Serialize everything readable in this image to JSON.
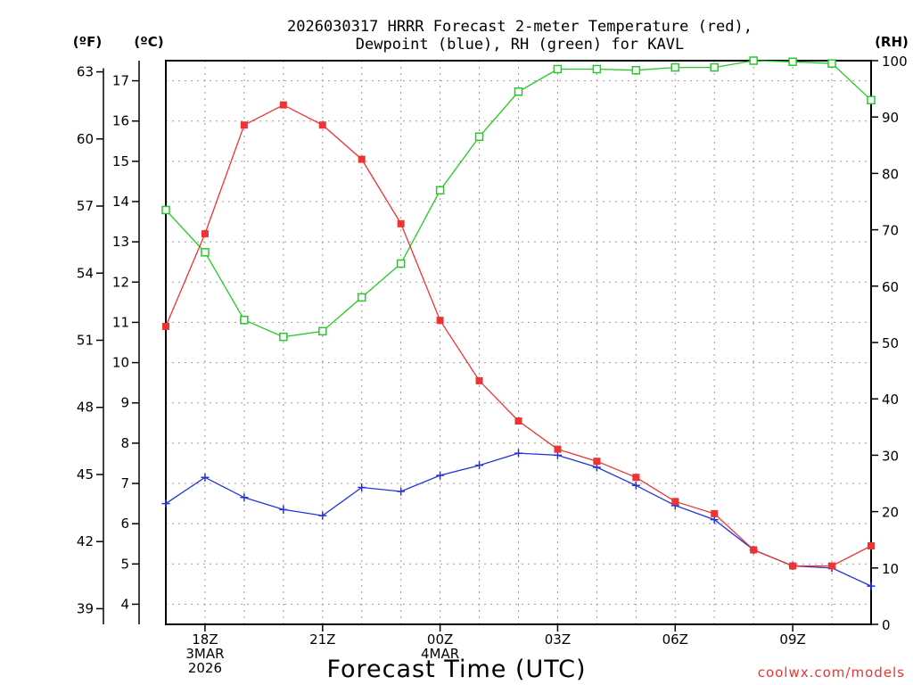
{
  "chart_data": {
    "type": "line",
    "title_line1": "2026030317 HRRR Forecast 2-meter Temperature (red),",
    "title_line2": "Dewpoint (blue), RH (green) for KAVL",
    "xlabel": "Forecast Time (UTC)",
    "credit": "coolwx.com/models",
    "units": {
      "fahrenheit": "(ºF)",
      "celsius": "(ºC)",
      "rh": "(RH)"
    },
    "colors": {
      "temperature": "#ee3333",
      "dewpoint": "#2233dd",
      "rh": "#22cc22",
      "grid": "#999999"
    },
    "hours": [
      0,
      1,
      2,
      3,
      4,
      5,
      6,
      7,
      8,
      9,
      10,
      11,
      12,
      13,
      14,
      15,
      16,
      17,
      18
    ],
    "xlim": [
      0,
      18
    ],
    "x_ticks": [
      {
        "hour": 1,
        "lines": [
          "18Z",
          "3MAR",
          "2026"
        ]
      },
      {
        "hour": 4,
        "lines": [
          "21Z"
        ]
      },
      {
        "hour": 7,
        "lines": [
          "00Z",
          "4MAR"
        ]
      },
      {
        "hour": 10,
        "lines": [
          "03Z"
        ]
      },
      {
        "hour": 13,
        "lines": [
          "06Z"
        ]
      },
      {
        "hour": 16,
        "lines": [
          "09Z"
        ]
      }
    ],
    "celsius_axis": {
      "ylim": [
        3.5,
        17.5
      ],
      "ticks": [
        4,
        5,
        6,
        7,
        8,
        9,
        10,
        11,
        12,
        13,
        14,
        15,
        16,
        17
      ]
    },
    "fahrenheit_ticks": [
      39,
      42,
      45,
      48,
      51,
      54,
      57,
      60,
      63
    ],
    "rh_axis": {
      "ylim": [
        0,
        100
      ],
      "ticks": [
        0,
        10,
        20,
        30,
        40,
        50,
        60,
        70,
        80,
        90,
        100
      ]
    },
    "series": [
      {
        "name": "Temperature",
        "unit": "C",
        "values": [
          10.9,
          13.2,
          15.9,
          16.4,
          15.9,
          15.05,
          13.45,
          11.05,
          9.55,
          8.55,
          7.85,
          7.55,
          7.15,
          6.55,
          6.25,
          5.35,
          4.95,
          4.95,
          5.45
        ]
      },
      {
        "name": "Dewpoint",
        "unit": "C",
        "values": [
          6.5,
          7.15,
          6.65,
          6.35,
          6.2,
          6.9,
          6.8,
          7.2,
          7.45,
          7.75,
          7.7,
          7.4,
          6.95,
          6.45,
          6.1,
          5.35,
          4.95,
          4.9,
          4.45
        ]
      },
      {
        "name": "RH",
        "unit": "%",
        "values": [
          73.5,
          66,
          54,
          51,
          52,
          58,
          64,
          77,
          86.5,
          94.5,
          98.5,
          98.5,
          98.3,
          98.8,
          98.8,
          100,
          99.8,
          99.5,
          93
        ]
      }
    ]
  }
}
